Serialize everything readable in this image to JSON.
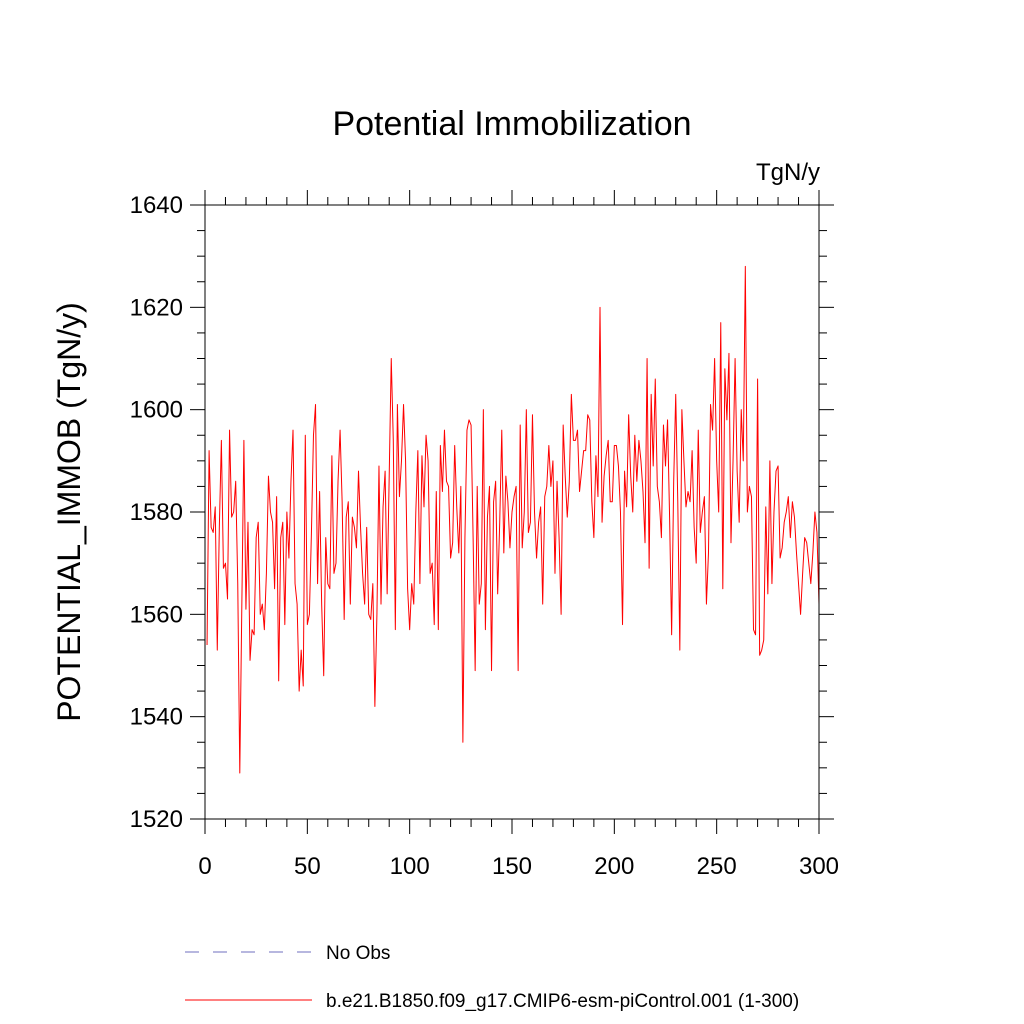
{
  "chart_data": {
    "type": "line",
    "title": "Potential Immobilization",
    "units": "TgN/y",
    "ylabel": "POTENTIAL_IMMOB  (TgN/y)",
    "xlabel": "",
    "xlim": [
      0,
      300
    ],
    "ylim": [
      1520,
      1640
    ],
    "x_ticks": [
      0,
      50,
      100,
      150,
      200,
      250,
      300
    ],
    "y_ticks": [
      1520,
      1540,
      1560,
      1580,
      1600,
      1620,
      1640
    ],
    "x_minor_step": 10,
    "y_minor_step": 5,
    "legend_position": "bottom",
    "series": [
      {
        "name": "No Obs",
        "color": "#6f6fbf",
        "style": "dashed",
        "values": []
      },
      {
        "name": "b.e21.B1850.f09_g17.CMIP6-esm-piControl.001 (1-300)",
        "color": "#ff0000",
        "style": "solid",
        "x_start": 1,
        "values": [
          1554,
          1592,
          1577,
          1576,
          1581,
          1553,
          1577,
          1594,
          1569,
          1570,
          1563,
          1596,
          1579,
          1580,
          1586,
          1566,
          1529,
          1562,
          1594,
          1561,
          1578,
          1551,
          1557,
          1556,
          1575,
          1578,
          1560,
          1562,
          1557,
          1568,
          1587,
          1580,
          1578,
          1565,
          1583,
          1547,
          1575,
          1578,
          1558,
          1580,
          1571,
          1586,
          1596,
          1566,
          1562,
          1545,
          1553,
          1546,
          1595,
          1558,
          1560,
          1576,
          1595,
          1601,
          1566,
          1584,
          1562,
          1548,
          1575,
          1566,
          1565,
          1591,
          1568,
          1570,
          1586,
          1596,
          1582,
          1559,
          1579,
          1582,
          1562,
          1579,
          1577,
          1573,
          1588,
          1577,
          1568,
          1562,
          1577,
          1560,
          1559,
          1566,
          1542,
          1560,
          1589,
          1562,
          1581,
          1588,
          1564,
          1587,
          1610,
          1594,
          1557,
          1601,
          1583,
          1590,
          1601,
          1590,
          1565,
          1557,
          1566,
          1562,
          1580,
          1592,
          1566,
          1591,
          1581,
          1595,
          1590,
          1568,
          1570,
          1558,
          1584,
          1557,
          1593,
          1584,
          1596,
          1586,
          1585,
          1571,
          1574,
          1593,
          1581,
          1572,
          1585,
          1535,
          1575,
          1596,
          1598,
          1597,
          1575,
          1549,
          1585,
          1562,
          1566,
          1600,
          1557,
          1579,
          1585,
          1549,
          1582,
          1586,
          1564,
          1578,
          1596,
          1572,
          1587,
          1582,
          1573,
          1580,
          1583,
          1585,
          1549,
          1597,
          1573,
          1580,
          1600,
          1576,
          1578,
          1599,
          1580,
          1571,
          1578,
          1581,
          1562,
          1583,
          1585,
          1593,
          1585,
          1590,
          1568,
          1586,
          1575,
          1560,
          1597,
          1587,
          1579,
          1586,
          1603,
          1594,
          1594,
          1596,
          1584,
          1588,
          1592,
          1592,
          1599,
          1598,
          1582,
          1575,
          1591,
          1583,
          1620,
          1578,
          1587,
          1591,
          1594,
          1582,
          1582,
          1593,
          1593,
          1589,
          1580,
          1558,
          1588,
          1581,
          1599,
          1587,
          1580,
          1595,
          1586,
          1594,
          1590,
          1584,
          1574,
          1610,
          1569,
          1603,
          1589,
          1606,
          1585,
          1582,
          1575,
          1597,
          1589,
          1598,
          1579,
          1556,
          1586,
          1603,
          1582,
          1553,
          1600,
          1590,
          1581,
          1584,
          1582,
          1592,
          1577,
          1570,
          1596,
          1576,
          1580,
          1583,
          1562,
          1572,
          1601,
          1596,
          1610,
          1590,
          1580,
          1617,
          1565,
          1608,
          1598,
          1611,
          1574,
          1590,
          1610,
          1588,
          1578,
          1600,
          1590,
          1628,
          1580,
          1585,
          1583,
          1557,
          1556,
          1606,
          1552,
          1553,
          1555,
          1581,
          1564,
          1590,
          1566,
          1580,
          1588,
          1589,
          1571,
          1573,
          1578,
          1580,
          1583,
          1575,
          1582,
          1579,
          1572,
          1566,
          1560,
          1568,
          1575,
          1574,
          1570,
          1566,
          1572,
          1580,
          1576,
          1562
        ]
      }
    ]
  }
}
